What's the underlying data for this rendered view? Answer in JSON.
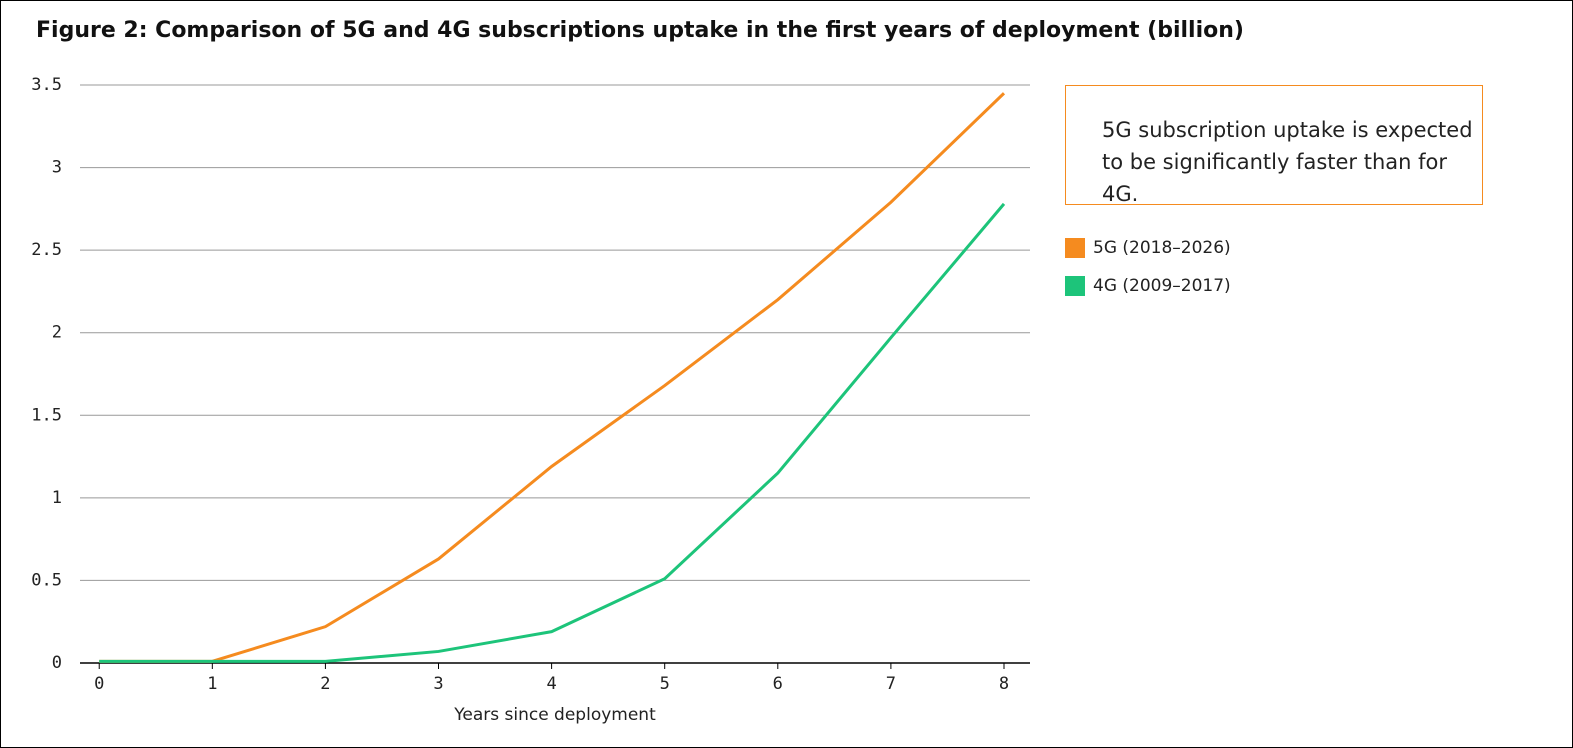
{
  "chart_data": {
    "type": "line",
    "title": "Figure 2: Comparison of 5G and 4G subscriptions uptake in the first years of deployment (billion)",
    "annotation": "5G subscription uptake is expected to be significantly faster than for 4G.",
    "x_label": "Years since deployment",
    "x": [
      0,
      1,
      2,
      3,
      4,
      5,
      6,
      7,
      8
    ],
    "series": [
      {
        "name": "5G (2018–2026)",
        "color": "#f58b1f",
        "values": [
          0.01,
          0.01,
          0.22,
          0.63,
          1.19,
          1.68,
          2.2,
          2.79,
          3.45
        ]
      },
      {
        "name": "4G (2009–2017)",
        "color": "#1dc47a",
        "values": [
          0.01,
          0.01,
          0.01,
          0.07,
          0.19,
          0.51,
          1.15,
          1.97,
          2.78
        ]
      }
    ],
    "xlim": [
      -0.17,
      8.23
    ],
    "xticks": [
      0,
      1,
      2,
      3,
      4,
      5,
      6,
      7,
      8
    ],
    "ylim": [
      0,
      3.5
    ],
    "yticks": [
      0,
      0.5,
      1,
      1.5,
      2,
      2.5,
      3,
      3.5
    ],
    "grid": true
  }
}
